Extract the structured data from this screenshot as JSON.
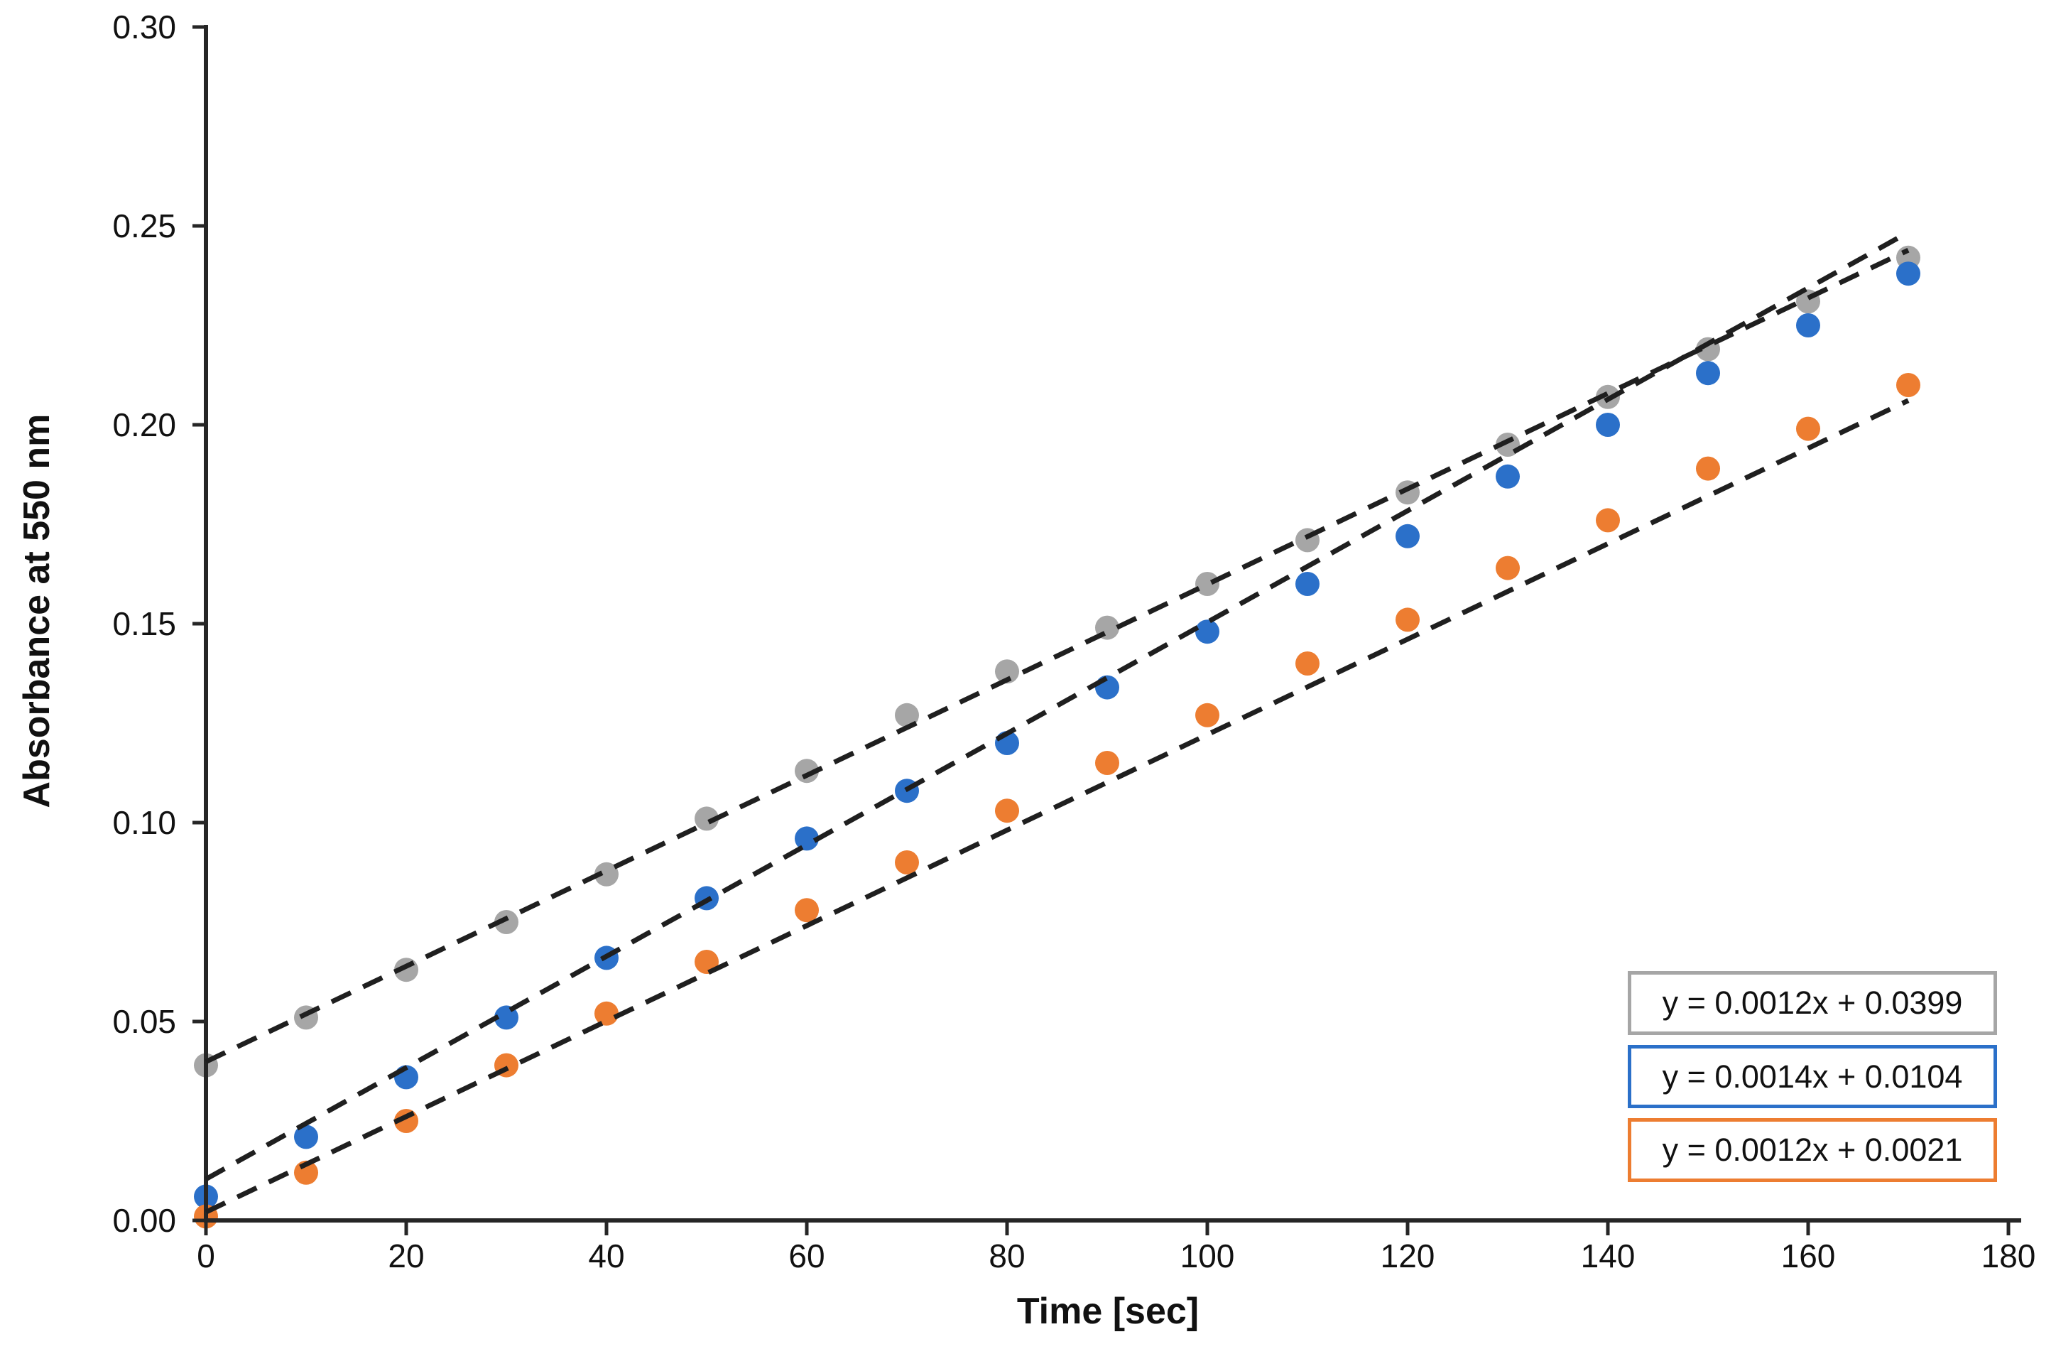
{
  "chart_data": {
    "type": "scatter",
    "title": "",
    "xlabel": "Time [sec]",
    "ylabel": "Absorbance at 550 nm",
    "xlim": [
      0,
      180
    ],
    "ylim": [
      0,
      0.3
    ],
    "grid": false,
    "legend_position": "equation boxes at bottom-right",
    "axis_color": "#262626",
    "trendline_color": "#1f1f1f",
    "x_ticks": [
      0,
      20,
      40,
      60,
      80,
      100,
      120,
      140,
      160,
      180
    ],
    "x_tick_labels": [
      "0",
      "20",
      "40",
      "60",
      "80",
      "100",
      "120",
      "140",
      "160",
      "180"
    ],
    "y_ticks": [
      0,
      0.05,
      0.1,
      0.15,
      0.2,
      0.25,
      0.3
    ],
    "y_tick_labels": [
      "0.00",
      "0.05",
      "0.10",
      "0.15",
      "0.20",
      "0.25",
      "0.30"
    ],
    "x": [
      0,
      10,
      20,
      30,
      40,
      50,
      60,
      70,
      80,
      90,
      100,
      110,
      120,
      130,
      140,
      150,
      160,
      170
    ],
    "series": [
      {
        "name": "series-gray",
        "color": "#A6A6A6",
        "values": [
          0.039,
          0.051,
          0.063,
          0.075,
          0.087,
          0.101,
          0.113,
          0.127,
          0.138,
          0.149,
          0.16,
          0.171,
          0.183,
          0.195,
          0.207,
          0.219,
          0.231,
          0.242
        ],
        "trend": {
          "slope": 0.0012,
          "intercept": 0.0399,
          "equation": "y = 0.0012x + 0.0399",
          "x_range": [
            0,
            170
          ]
        }
      },
      {
        "name": "series-blue",
        "color": "#2B70C9",
        "values": [
          0.006,
          0.021,
          0.036,
          0.051,
          0.066,
          0.081,
          0.096,
          0.108,
          0.12,
          0.134,
          0.148,
          0.16,
          0.172,
          0.187,
          0.2,
          0.213,
          0.225,
          0.238
        ],
        "trend": {
          "slope": 0.0014,
          "intercept": 0.0104,
          "equation": "y = 0.0014x + 0.0104",
          "x_range": [
            0,
            170
          ]
        }
      },
      {
        "name": "series-orange",
        "color": "#ED7D31",
        "values": [
          0.001,
          0.012,
          0.025,
          0.039,
          0.052,
          0.065,
          0.078,
          0.09,
          0.103,
          0.115,
          0.127,
          0.14,
          0.151,
          0.164,
          0.176,
          0.189,
          0.199,
          0.21
        ],
        "trend": {
          "slope": 0.0012,
          "intercept": 0.0021,
          "equation": "y = 0.0012x + 0.0021",
          "x_range": [
            0,
            170
          ]
        }
      }
    ]
  }
}
